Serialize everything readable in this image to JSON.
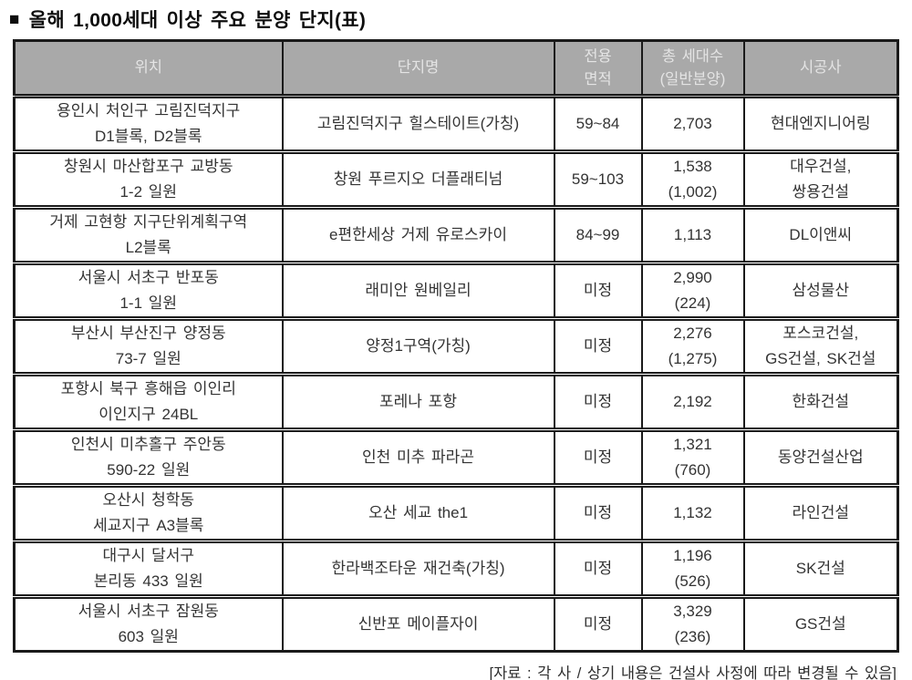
{
  "title": {
    "bullet": "■",
    "text": "올해 1,000세대 이상 주요 분양 단지(표)"
  },
  "colors": {
    "header_bg": "#a9a9a9",
    "header_text": "#e4e4e4",
    "border": "#1a1a1a",
    "body_text": "#333333"
  },
  "table": {
    "headers": {
      "location": "위치",
      "complex": "단지명",
      "area": [
        "전용",
        "면적"
      ],
      "households": [
        "총 세대수",
        "(일반분양)"
      ],
      "builder": "시공사"
    },
    "rows": [
      {
        "location": [
          "용인시 처인구 고림진덕지구",
          "D1블록, D2블록"
        ],
        "complex": "고림진덕지구 힐스테이트(가칭)",
        "area": "59~84",
        "households": [
          "2,703"
        ],
        "builder": [
          "현대엔지니어링"
        ]
      },
      {
        "location": [
          "창원시 마산합포구 교방동",
          "1-2 일원"
        ],
        "complex": "창원 푸르지오 더플래티넘",
        "area": "59~103",
        "households": [
          "1,538",
          "(1,002)"
        ],
        "builder": [
          "대우건설,",
          "쌍용건설"
        ]
      },
      {
        "location": [
          "거제 고현항 지구단위계획구역",
          "L2블록"
        ],
        "complex": "e편한세상 거제 유로스카이",
        "area": "84~99",
        "households": [
          "1,113"
        ],
        "builder": [
          "DL이앤씨"
        ]
      },
      {
        "location": [
          "서울시 서초구 반포동",
          "1-1 일원"
        ],
        "complex": "래미안 원베일리",
        "area": "미정",
        "households": [
          "2,990",
          "(224)"
        ],
        "builder": [
          "삼성물산"
        ]
      },
      {
        "location": [
          "부산시 부산진구 양정동",
          "73-7 일원"
        ],
        "complex": "양정1구역(가칭)",
        "area": "미정",
        "households": [
          "2,276",
          "(1,275)"
        ],
        "builder": [
          "포스코건설,",
          "GS건설, SK건설"
        ]
      },
      {
        "location": [
          "포항시 북구 흥해읍 이인리",
          "이인지구 24BL"
        ],
        "complex": "포레나 포항",
        "area": "미정",
        "households": [
          "2,192"
        ],
        "builder": [
          "한화건설"
        ]
      },
      {
        "location": [
          "인천시 미추홀구 주안동",
          "590-22 일원"
        ],
        "complex": "인천 미추 파라곤",
        "area": "미정",
        "households": [
          "1,321",
          "(760)"
        ],
        "builder": [
          "동양건설산업"
        ]
      },
      {
        "location": [
          "오산시 청학동",
          "세교지구 A3블록"
        ],
        "complex": "오산 세교 the1",
        "area": "미정",
        "households": [
          "1,132"
        ],
        "builder": [
          "라인건설"
        ]
      },
      {
        "location": [
          "대구시 달서구",
          "본리동 433 일원"
        ],
        "complex": "한라백조타운 재건축(가칭)",
        "area": "미정",
        "households": [
          "1,196",
          "(526)"
        ],
        "builder": [
          "SK건설"
        ]
      },
      {
        "location": [
          "서울시 서초구 잠원동",
          "603 일원"
        ],
        "complex": "신반포 메이플자이",
        "area": "미정",
        "households": [
          "3,329",
          "(236)"
        ],
        "builder": [
          "GS건설"
        ]
      }
    ]
  },
  "footer": "[자료 : 각 사 / 상기 내용은 건설사 사정에 따라 변경될 수 있음]"
}
